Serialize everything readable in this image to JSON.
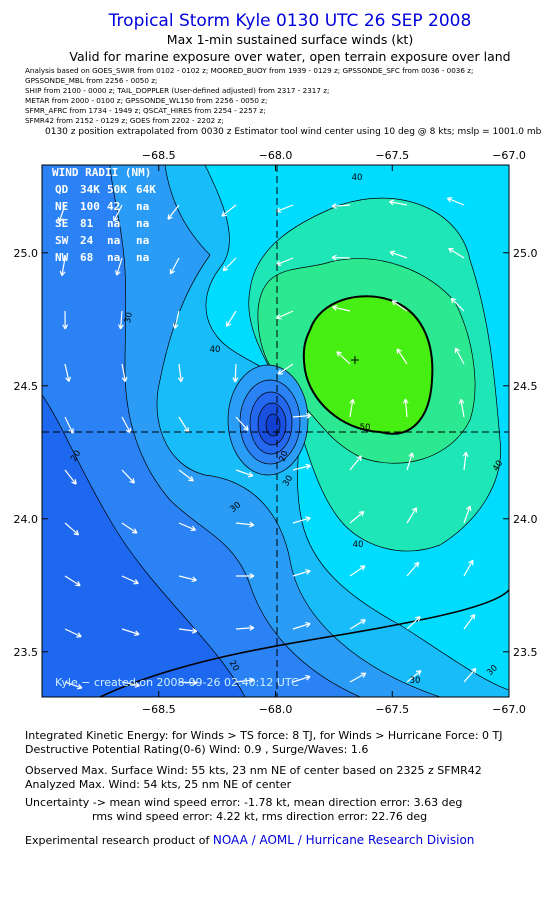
{
  "header": {
    "title": "Tropical Storm Kyle 0130 UTC 26 SEP 2008",
    "subtitle": "Max 1-min sustained surface winds (kt)",
    "validity": "Valid for marine exposure over water, open terrain exposure over land",
    "analysis_lines": [
      "Analysis based on  GOES_SWIR from 0102 - 0102 z;   MOORED_BUOY from 1939 - 0129 z;   GPSSONDE_SFC from 0036 - 0036 z;",
      "GPSSONDE_MBL from 2256 - 0050 z;",
      "SHIP from 2100 - 0000 z;   TAIL_DOPPLER (User-defined adjusted) from 2317 - 2317 z;",
      "METAR from 2000 - 0100 z;   GPSSONDE_WL150 from 2256 - 0050 z;",
      "SFMR_AFRC from 1734 - 1949 z;   QSCAT_HIRES from 2254 - 2257 z;",
      "SFMR42 from 2152 - 0129 z;   GOES from 2202 - 2202 z;"
    ],
    "position_note": "0130 z position extrapolated from 0030 z Estimator tool wind center using 10 deg @ 8 kts; mslp = 1001.0 mb"
  },
  "map": {
    "xlim": [
      -69.0,
      -67.0
    ],
    "ylim": [
      23.33,
      25.33
    ],
    "xticks": [
      {
        "value": -68.5,
        "label": "−68.5"
      },
      {
        "value": -68.0,
        "label": "−68.0"
      },
      {
        "value": -67.5,
        "label": "−67.5"
      },
      {
        "value": -67.0,
        "label": "−67.0"
      }
    ],
    "yticks": [
      {
        "value": 23.5,
        "label": "23.5"
      },
      {
        "value": 24.0,
        "label": "24.0"
      },
      {
        "value": 24.5,
        "label": "24.5"
      },
      {
        "value": 25.0,
        "label": "25.0"
      }
    ],
    "wind_radii": {
      "title": "WIND RADII (NM)",
      "header": [
        "QD",
        "34K",
        "50K",
        "64K"
      ],
      "rows": [
        [
          "NE",
          "100",
          "42",
          "na"
        ],
        [
          "SE",
          "81",
          "na",
          "na"
        ],
        [
          "SW",
          "24",
          "na",
          "na"
        ],
        [
          "NW",
          "68",
          "na",
          "na"
        ]
      ]
    },
    "contour_labels": [
      "40",
      "30",
      "40",
      "50",
      "20",
      "20",
      "30",
      "30",
      "40",
      "40",
      "20",
      "30",
      "30"
    ],
    "watermark": "Kyle − created on 2008-09-26 02:40:12 UTC"
  },
  "footer": {
    "lines": [
      "Integrated Kinetic Energy:  for Winds > TS force: 8 TJ,  for Winds > Hurricane Force: 0 TJ",
      "Destructive Potential Rating(0-6)   Wind: 0.9 , Surge/Waves: 1.6",
      "Observed Max. Surface Wind: 55 kts, 23 nm NE of center based on 2325 z SFMR42",
      "Analyzed Max. Wind: 54 kts, 25 nm NE of center",
      "Uncertainty -> mean wind speed error:  -1.78 kt,   mean direction error: 3.63 deg",
      "rms wind speed error: 4.22 kt,      rms direction error: 22.76 deg"
    ],
    "credit_prefix": "Experimental research product of ",
    "credit_org": "NOAA / AOML / Hurricane Research Division"
  }
}
